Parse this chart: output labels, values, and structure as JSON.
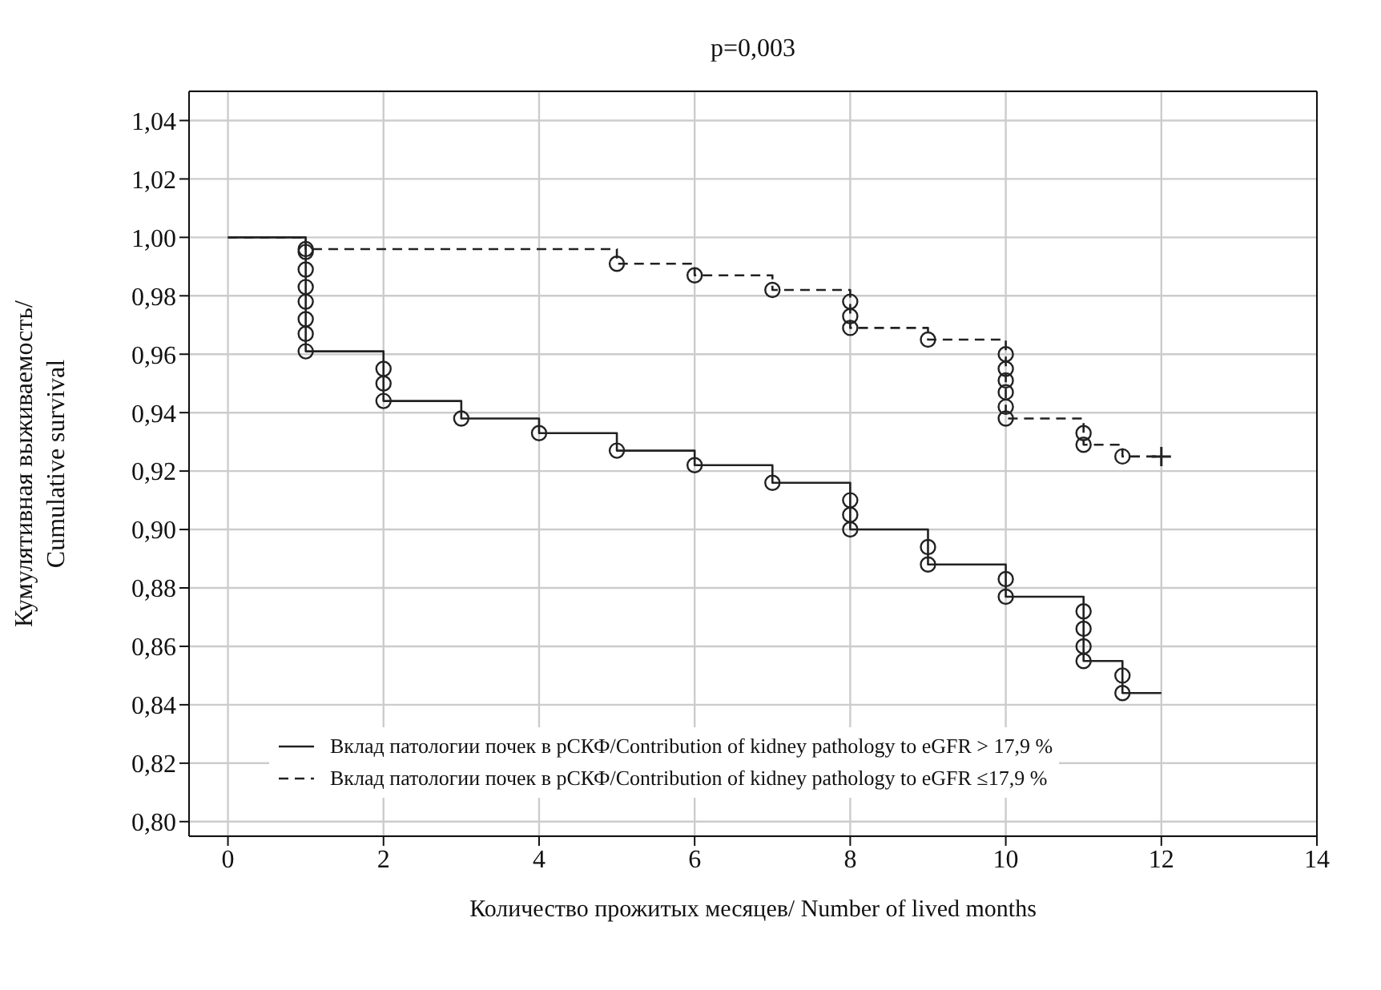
{
  "chart_data": {
    "type": "step",
    "title": "p=0,003",
    "xlabel": "Количество прожитых месяцев/ Number of lived months",
    "ylabel": "Кумулятивная выживаемость/ Cumulative survival",
    "xlim": [
      -0.5,
      14
    ],
    "xticks": [
      0,
      2,
      4,
      6,
      8,
      10,
      12,
      14
    ],
    "ylim": [
      0.795,
      1.05
    ],
    "yticks": [
      {
        "value": 0.8,
        "label": "0,80"
      },
      {
        "value": 0.82,
        "label": "0,82"
      },
      {
        "value": 0.84,
        "label": "0,84"
      },
      {
        "value": 0.86,
        "label": "0,86"
      },
      {
        "value": 0.88,
        "label": "0,88"
      },
      {
        "value": 0.9,
        "label": "0,90"
      },
      {
        "value": 0.92,
        "label": "0,92"
      },
      {
        "value": 0.94,
        "label": "0,94"
      },
      {
        "value": 0.96,
        "label": "0,96"
      },
      {
        "value": 0.98,
        "label": "0,98"
      },
      {
        "value": 1.0,
        "label": "1,00"
      },
      {
        "value": 1.02,
        "label": "1,02"
      },
      {
        "value": 1.04,
        "label": "1,04"
      }
    ],
    "grid": true,
    "legend": "bottom left",
    "series": [
      {
        "name": "Вклад патологии почек в рСКФ/Contribution of kidney pathology to eGFR > 17,9 %",
        "color": "#222222",
        "line_style": "solid",
        "marker": "none",
        "x": [
          0,
          1,
          2,
          3,
          4,
          5,
          6,
          7,
          8,
          9,
          10,
          11,
          11.5,
          12
        ],
        "values": [
          1.0,
          0.961,
          0.944,
          0.938,
          0.933,
          0.927,
          0.922,
          0.916,
          0.9,
          0.888,
          0.877,
          0.855,
          0.844,
          0.844
        ]
      },
      {
        "name": "Вклад патологии почек в рСКФ/Contribution of kidney pathology to eGFR ≤17,9 %",
        "color": "#222222",
        "line_style": "dashed",
        "marker": "none",
        "x": [
          0,
          1,
          5,
          6,
          7,
          8,
          9,
          10,
          11,
          11.5,
          12
        ],
        "values": [
          1.0,
          0.996,
          0.991,
          0.987,
          0.982,
          0.969,
          0.965,
          0.938,
          0.929,
          0.925,
          0.925
        ]
      },
      {
        "type": "scatter",
        "color": "#222222",
        "marker": "circle",
        "x": [
          1,
          1,
          1,
          1,
          1,
          1,
          1,
          2,
          2,
          2,
          3,
          4,
          5,
          6,
          7,
          8,
          8,
          8,
          9,
          9,
          10,
          10,
          11,
          11,
          11,
          11,
          11.5,
          11.5
        ],
        "values": [
          0.995,
          0.989,
          0.983,
          0.978,
          0.972,
          0.967,
          0.961,
          0.955,
          0.95,
          0.944,
          0.938,
          0.933,
          0.927,
          0.922,
          0.916,
          0.91,
          0.905,
          0.9,
          0.894,
          0.888,
          0.883,
          0.877,
          0.872,
          0.866,
          0.86,
          0.855,
          0.85,
          0.844
        ]
      },
      {
        "type": "scatter",
        "color": "#222222",
        "marker": "circle",
        "x": [
          1,
          5,
          6,
          7,
          8,
          8,
          8,
          9,
          10,
          10,
          10,
          10,
          10,
          10,
          11,
          11,
          11.5
        ],
        "values": [
          0.996,
          0.991,
          0.987,
          0.982,
          0.978,
          0.973,
          0.969,
          0.965,
          0.96,
          0.955,
          0.951,
          0.947,
          0.942,
          0.938,
          0.933,
          0.929,
          0.925
        ]
      },
      {
        "type": "scatter",
        "color": "#222222",
        "marker": "cross",
        "x": [
          12
        ],
        "values": [
          0.925
        ]
      }
    ]
  }
}
